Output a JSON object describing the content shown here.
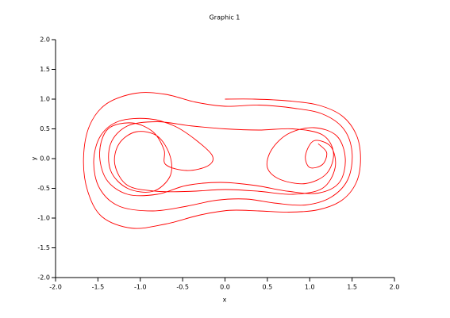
{
  "chart_data": {
    "type": "line",
    "title": "Graphic 1",
    "x_label": "x",
    "y_label": "y",
    "color": "#ff0000",
    "xlim": [
      -2,
      2
    ],
    "ylim": [
      -2,
      2
    ],
    "xticks": [
      {
        "value": -2,
        "label": "-2.0"
      },
      {
        "value": -1.5,
        "label": "-1.5"
      },
      {
        "value": -1,
        "label": "-1.0"
      },
      {
        "value": -0.5,
        "label": "-0.5"
      },
      {
        "value": 0,
        "label": "0.0"
      },
      {
        "value": 0.5,
        "label": "0.5"
      },
      {
        "value": 1,
        "label": "1.0"
      },
      {
        "value": 1.5,
        "label": "1.5"
      },
      {
        "value": 2,
        "label": "2.0"
      }
    ],
    "yticks": [
      {
        "value": -2,
        "label": "-2.0"
      },
      {
        "value": -1.5,
        "label": "-1.5"
      },
      {
        "value": -1,
        "label": "-1.0"
      },
      {
        "value": -0.5,
        "label": "-0.5"
      },
      {
        "value": 0,
        "label": "0.0"
      },
      {
        "value": 0.5,
        "label": "0.5"
      },
      {
        "value": 1,
        "label": "1.0"
      },
      {
        "value": 1.5,
        "label": "1.5"
      },
      {
        "value": 2,
        "label": "2.0"
      }
    ],
    "x": [
      0.0,
      0.35,
      0.75,
      1.1,
      1.38,
      1.55,
      1.6,
      1.55,
      1.38,
      1.1,
      0.75,
      0.4,
      0.05,
      -0.3,
      -0.7,
      -1.1,
      -1.45,
      -1.62,
      -1.67,
      -1.6,
      -1.4,
      -1.05,
      -0.7,
      -0.35,
      0.0,
      0.4,
      0.8,
      1.15,
      1.4,
      1.5,
      1.45,
      1.25,
      0.95,
      0.6,
      0.25,
      -0.1,
      -0.45,
      -0.85,
      -1.25,
      -1.48,
      -1.55,
      -1.47,
      -1.25,
      -0.9,
      -0.6,
      -0.35,
      -0.15,
      -0.2,
      -0.45,
      -0.7,
      -0.72,
      -0.85,
      -1.1,
      -1.38,
      -1.48,
      -1.4,
      -1.15,
      -0.8,
      -0.45,
      -0.05,
      0.35,
      0.75,
      1.1,
      1.35,
      1.42,
      1.32,
      1.05,
      0.75,
      0.55,
      0.5,
      0.65,
      0.95,
      1.2,
      1.28,
      1.15,
      0.8,
      0.4,
      0.0,
      -0.4,
      -0.8,
      -1.15,
      -1.35,
      -1.35,
      -1.15,
      -0.85,
      -0.65,
      -0.65,
      -0.8,
      -1.05,
      -1.25,
      -1.3,
      -1.15,
      -0.8,
      -0.4,
      0.0,
      0.4,
      0.8,
      1.15,
      1.3,
      1.25,
      1.05,
      0.95,
      1.0,
      1.15,
      1.2,
      1.1
    ],
    "values": [
      1.0,
      1.0,
      0.97,
      0.9,
      0.72,
      0.4,
      0.0,
      -0.4,
      -0.7,
      -0.86,
      -0.9,
      -0.88,
      -0.87,
      -0.95,
      -1.1,
      -1.17,
      -0.98,
      -0.55,
      0.0,
      0.55,
      0.92,
      1.1,
      1.08,
      0.95,
      0.88,
      0.9,
      0.85,
      0.75,
      0.5,
      0.1,
      -0.35,
      -0.65,
      -0.78,
      -0.75,
      -0.68,
      -0.7,
      -0.8,
      -0.88,
      -0.8,
      -0.5,
      -0.05,
      0.38,
      0.63,
      0.67,
      0.55,
      0.32,
      0.05,
      -0.12,
      -0.2,
      -0.1,
      0.15,
      0.45,
      0.6,
      0.5,
      0.1,
      -0.35,
      -0.6,
      -0.6,
      -0.45,
      -0.4,
      -0.45,
      -0.55,
      -0.58,
      -0.4,
      0.0,
      0.38,
      0.52,
      0.42,
      0.15,
      -0.15,
      -0.35,
      -0.42,
      -0.25,
      0.1,
      0.4,
      0.5,
      0.48,
      0.5,
      0.55,
      0.62,
      0.55,
      0.25,
      -0.2,
      -0.5,
      -0.55,
      -0.3,
      0.05,
      0.38,
      0.45,
      0.25,
      -0.1,
      -0.45,
      -0.55,
      -0.55,
      -0.52,
      -0.55,
      -0.6,
      -0.5,
      -0.15,
      0.2,
      0.3,
      0.05,
      -0.15,
      -0.1,
      0.1,
      0.25
    ]
  }
}
